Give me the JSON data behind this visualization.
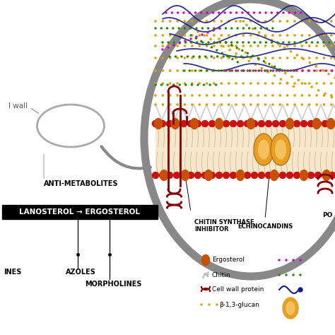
{
  "bg_color": "#ffffff",
  "cell_wall_label": "l wall",
  "anti_metabolites_label": "ANTI-METABOLITES",
  "lanosterol_ergosterol_label": "LANOSTEROL → ERGOSTEROL",
  "azoles_label": "AZOLES",
  "morpholines_label": "MORPHOLINES",
  "allyl_label": "INES",
  "chitin_synthase_label": "CHITIN SYNTHASE\nINHIBITOR",
  "echinocandins_label": "ECHINOCANDINS",
  "polyenes_label": "PO",
  "legend_ergosterol": "Ergosterol",
  "legend_chitin": "Chitin",
  "legend_cell_wall_protein": "Cell wall protein",
  "legend_beta_glucan": "β-1,3-glucan",
  "ergosterol_color": "#c85000",
  "membrane_red_color": "#cc1111",
  "glucan_color": "#e0a000",
  "chitin_color": "#cccccc",
  "purple_color": "#cc00cc",
  "green_dotted_color": "#228800",
  "blue_color": "#1a1a8c",
  "cell_wall_protein_color": "#8b0000",
  "grey_outline": "#888888",
  "big_ellipse_outline": "#888888",
  "orange_protein_color": "#e8a020",
  "orange_protein_inner": "#f5c060",
  "membrane_interior_color": "#f5e8cc"
}
